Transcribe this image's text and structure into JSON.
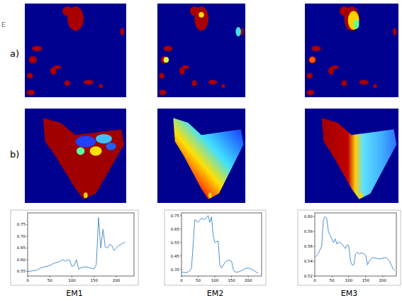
{
  "figure": {
    "letter": "E",
    "rows": [
      "a)",
      "b)"
    ]
  },
  "chart_data": [
    {
      "type": "line",
      "title": "EM1",
      "color": "#3b84c4",
      "x": [
        0,
        10,
        20,
        30,
        40,
        50,
        60,
        70,
        80,
        85,
        90,
        95,
        100,
        105,
        110,
        115,
        120,
        130,
        140,
        150,
        155,
        160,
        165,
        170,
        175,
        180,
        185,
        190,
        195,
        200,
        205,
        210,
        220
      ],
      "values": [
        0.55,
        0.552,
        0.555,
        0.565,
        0.57,
        0.575,
        0.585,
        0.59,
        0.6,
        0.592,
        0.6,
        0.597,
        0.57,
        0.575,
        0.6,
        0.56,
        0.565,
        0.57,
        0.565,
        0.56,
        0.58,
        0.78,
        0.65,
        0.73,
        0.655,
        0.65,
        0.665,
        0.66,
        0.64,
        0.65,
        0.66,
        0.665,
        0.675
      ],
      "xlim": [
        0,
        240
      ],
      "xticks": [
        0,
        50,
        100,
        150,
        200
      ],
      "ylim": [
        0.53,
        0.8
      ],
      "yticks": [
        0.55,
        {
          "value": 0.6,
          "label": "0.60"
        },
        0.65,
        {
          "value": 0.7,
          "label": "0.70"
        },
        0.75
      ],
      "grid": false
    },
    {
      "type": "line",
      "title": "EM2",
      "color": "#3b84c4",
      "x": [
        0,
        10,
        20,
        25,
        30,
        40,
        50,
        60,
        70,
        80,
        85,
        90,
        95,
        100,
        110,
        115,
        120,
        130,
        140,
        150,
        155,
        160,
        170,
        180,
        190,
        200,
        210,
        220,
        230
      ],
      "values": [
        0.33,
        0.325,
        0.33,
        0.34,
        0.36,
        0.72,
        0.7,
        0.73,
        0.72,
        0.75,
        0.7,
        0.74,
        0.6,
        0.55,
        0.56,
        0.38,
        0.36,
        0.4,
        0.42,
        0.41,
        0.35,
        0.33,
        0.33,
        0.34,
        0.355,
        0.36,
        0.35,
        0.335,
        0.32
      ],
      "xlim": [
        0,
        240
      ],
      "xticks": [
        0,
        50,
        100,
        150,
        200
      ],
      "ylim": [
        0.3,
        0.77
      ],
      "yticks": [
        0.35,
        0.45,
        0.55,
        0.65,
        0.75
      ],
      "grid": false
    },
    {
      "type": "line",
      "title": "EM3",
      "color": "#3b84c4",
      "x": [
        0,
        10,
        20,
        25,
        30,
        35,
        40,
        45,
        50,
        55,
        60,
        65,
        70,
        80,
        85,
        90,
        95,
        100,
        105,
        110,
        115,
        120,
        125,
        130,
        140,
        150,
        155,
        160,
        170,
        180,
        190,
        200,
        210,
        220,
        230,
        235
      ],
      "values": [
        0.545,
        0.55,
        0.56,
        0.595,
        0.6,
        0.598,
        0.58,
        0.575,
        0.57,
        0.565,
        0.57,
        0.563,
        0.566,
        0.563,
        0.56,
        0.557,
        0.562,
        0.561,
        0.54,
        0.535,
        0.535,
        0.55,
        0.552,
        0.55,
        0.551,
        0.548,
        0.535,
        0.54,
        0.545,
        0.544,
        0.543,
        0.544,
        0.545,
        0.54,
        0.53,
        0.527
      ],
      "xlim": [
        0,
        240
      ],
      "xticks": [
        0,
        50,
        100,
        150,
        200
      ],
      "ylim": [
        0.52,
        0.605
      ],
      "yticks": [
        0.52,
        0.54,
        0.56,
        0.58,
        {
          "value": 0.6,
          "label": "0.60"
        }
      ],
      "grid": false
    }
  ]
}
